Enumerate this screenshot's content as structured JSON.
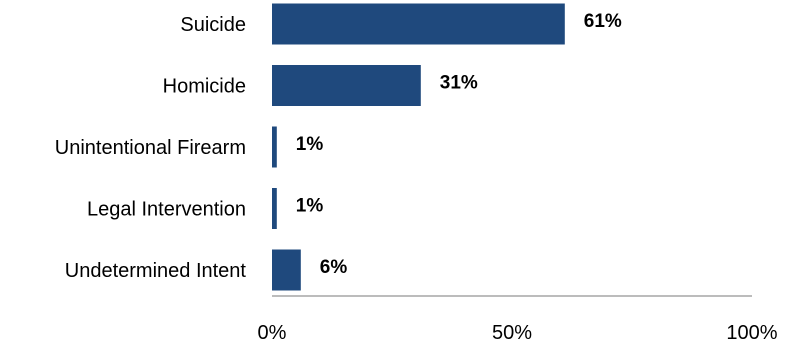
{
  "chart_data": {
    "type": "bar",
    "orientation": "horizontal",
    "categories": [
      "Suicide",
      "Homicide",
      "Unintentional Firearm",
      "Legal Intervention",
      "Undetermined Intent"
    ],
    "values": [
      61,
      31,
      1,
      1,
      6
    ],
    "value_labels": [
      "61%",
      "31%",
      "1%",
      "1%",
      "6%"
    ],
    "title": "",
    "xlabel": "",
    "ylabel": "",
    "xlim": [
      0,
      100
    ],
    "x_ticks": [
      0,
      50,
      100
    ],
    "x_tick_labels": [
      "0%",
      "50%",
      "100%"
    ],
    "grid": false,
    "bar_color": "#1F497D",
    "axis_color": "#A6A6A6"
  }
}
